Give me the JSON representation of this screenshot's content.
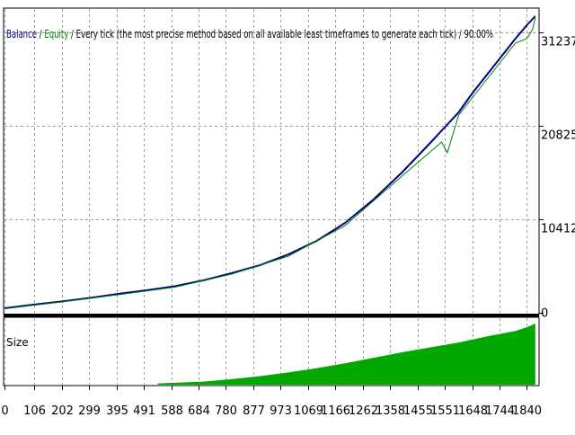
{
  "colors": {
    "balance": "#000080",
    "equity": "#008000",
    "size": "#00a800",
    "grid": "#a0a0a0",
    "frame": "#000000",
    "background": "#ffffff"
  },
  "chart_data": [
    {
      "type": "line",
      "title_parts": [
        {
          "text": "Balance",
          "color": "#000080"
        },
        {
          "text": " / ",
          "color": "#000000"
        },
        {
          "text": "Equity",
          "color": "#008000"
        },
        {
          "text": " / Every tick (the most precise method based on all available least timeframes to generate each tick) / 90.00%",
          "color": "#000000"
        }
      ],
      "y_ticks": [
        0,
        10412,
        20825,
        31237
      ],
      "y_tick_labels": [
        "0",
        "10412",
        "20825",
        "31237"
      ],
      "ylim": [
        0,
        33500
      ],
      "xlim": [
        0,
        1880
      ],
      "grid": true,
      "series": [
        {
          "name": "Balance",
          "x": [
            0,
            100,
            200,
            300,
            400,
            500,
            600,
            700,
            800,
            900,
            1000,
            1100,
            1200,
            1300,
            1400,
            1500,
            1550,
            1600,
            1650,
            1700,
            1750,
            1800,
            1840,
            1870
          ],
          "values": [
            500,
            900,
            1250,
            1650,
            2100,
            2500,
            2950,
            3600,
            4400,
            5300,
            6500,
            8000,
            10000,
            12600,
            15600,
            18900,
            20600,
            22300,
            24500,
            26500,
            28500,
            30500,
            32000,
            33000
          ]
        },
        {
          "name": "Equity",
          "x": [
            0,
            200,
            400,
            600,
            800,
            1000,
            1200,
            1400,
            1540,
            1560,
            1600,
            1650,
            1700,
            1750,
            1800,
            1840,
            1860,
            1870
          ],
          "values": [
            450,
            1200,
            2000,
            2850,
            4300,
            6300,
            9700,
            15200,
            19000,
            17800,
            22000,
            24000,
            26000,
            28000,
            30000,
            30500,
            31500,
            32800
          ]
        }
      ]
    },
    {
      "type": "area",
      "title": "Size",
      "x_ticks": [
        0,
        106,
        202,
        299,
        395,
        491,
        588,
        684,
        780,
        877,
        973,
        1069,
        1166,
        1262,
        1358,
        1455,
        1551,
        1648,
        1744,
        1840
      ],
      "x_tick_labels": [
        "0",
        "106",
        "202",
        "299",
        "395",
        "491",
        "588",
        "684",
        "780",
        "877",
        "973",
        "1069",
        "1166",
        "1262",
        "1358",
        "1455",
        "1551",
        "1648",
        "1744",
        "1840"
      ],
      "xlim": [
        0,
        1880
      ],
      "ylim": [
        0,
        1
      ],
      "series": [
        {
          "name": "Size",
          "x": [
            540,
            700,
            800,
            900,
            1000,
            1100,
            1200,
            1300,
            1400,
            1500,
            1600,
            1700,
            1800,
            1840,
            1870
          ],
          "values": [
            0.02,
            0.05,
            0.09,
            0.14,
            0.2,
            0.27,
            0.35,
            0.44,
            0.53,
            0.61,
            0.69,
            0.79,
            0.88,
            0.94,
            1.0
          ]
        }
      ]
    }
  ]
}
